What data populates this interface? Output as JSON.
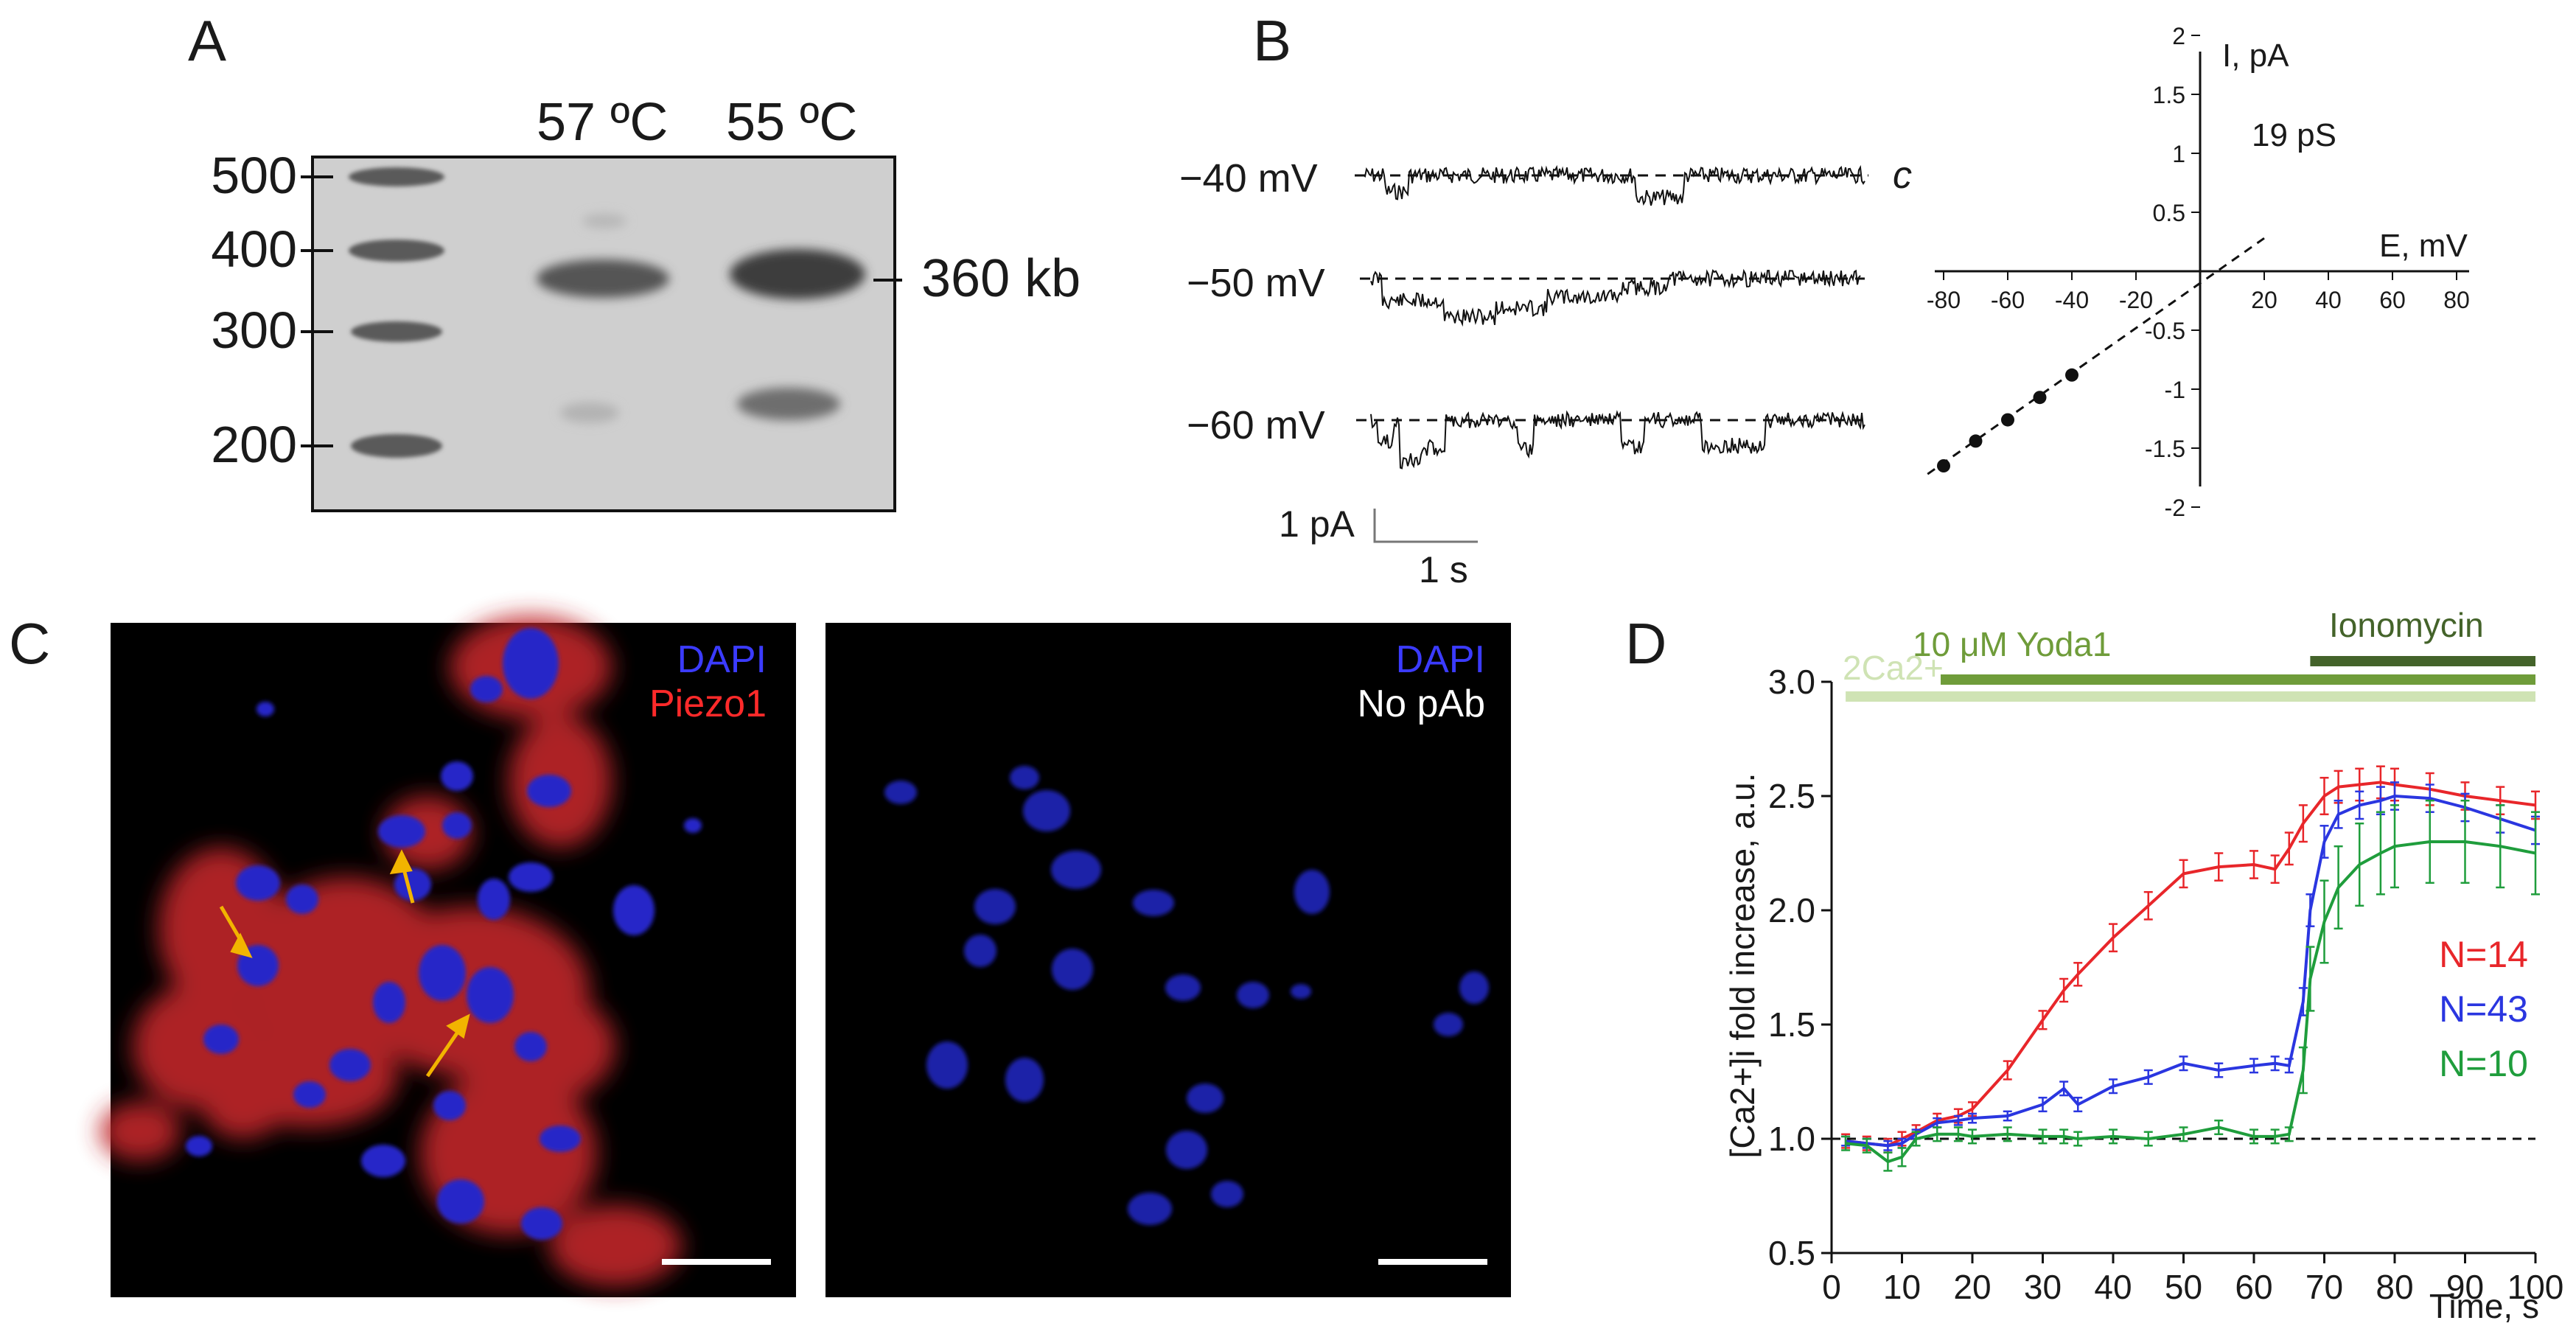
{
  "panel_letters": {
    "a": "A",
    "b": "B",
    "c": "C",
    "d": "D"
  },
  "colors": {
    "red": "#e8262a",
    "blue": "#2a36e0",
    "green": "#1f9d3c",
    "bar_light": "#cfe3b4",
    "bar_mid": "#6f9c3a",
    "bar_dark": "#44632a",
    "dapi": "#3b3bff",
    "piezo": "#ff2a2a",
    "arrow": "#f2b400"
  },
  "gel": {
    "lane_labels": [
      "57 ºC",
      "55 ºC"
    ],
    "ladder_labels": [
      "500",
      "400",
      "300",
      "200"
    ],
    "band_label": "360 kb"
  },
  "traces": {
    "voltages": [
      "−40 mV",
      "−50 mV",
      "−60 mV"
    ],
    "closed_label": "c",
    "scale_current": "1 pA",
    "scale_time": "1 s"
  },
  "iv_plot": {
    "x_axis_label": "E, mV",
    "y_axis_label": "I, pA",
    "conductance_label": "19 pS",
    "x_ticks": [
      "-80",
      "-60",
      "-40",
      "-20",
      "20",
      "40",
      "60",
      "80"
    ],
    "y_ticks": [
      "2",
      "1.5",
      "1",
      "0.5",
      "-0.5",
      "-1",
      "-1.5",
      "-2"
    ]
  },
  "micrographs": {
    "left_labels": [
      "DAPI",
      "Piezo1"
    ],
    "right_labels": [
      "DAPI",
      "No pAb"
    ]
  },
  "chart_data": [
    {
      "type": "scatter",
      "xlabel": "E, mV",
      "ylabel": "I, pA",
      "xlim": [
        -80,
        80
      ],
      "ylim": [
        -2,
        2
      ],
      "x": [
        -80,
        -70,
        -60,
        -50,
        -40
      ],
      "y": [
        -1.65,
        -1.44,
        -1.26,
        -1.07,
        -0.88
      ],
      "fit_line": {
        "x": [
          -85,
          20
        ],
        "y": [
          -1.72,
          0.28
        ]
      },
      "annotation": "19 pS"
    },
    {
      "type": "line",
      "xlabel": "Time, s",
      "ylabel": "[Ca2+]i fold increase, a.u.",
      "xlim": [
        0,
        100
      ],
      "ylim": [
        0.5,
        3.0
      ],
      "x_ticks": [
        0,
        10,
        20,
        30,
        40,
        50,
        60,
        70,
        80,
        90,
        100
      ],
      "y_ticks": [
        "0.5",
        "1.0",
        "1.5",
        "2.0",
        "2.5",
        "3.0"
      ],
      "baseline": 1.0,
      "treatments": [
        {
          "label": "2Ca2+",
          "start": 2,
          "end": 100,
          "level": "light"
        },
        {
          "label": "10 μM Yoda1",
          "start": 15.5,
          "end": 100,
          "level": "mid"
        },
        {
          "label": "Ionomycin",
          "start": 68,
          "end": 100,
          "level": "dark"
        }
      ],
      "series": [
        {
          "name": "N=14",
          "color": "red",
          "x": [
            2,
            5,
            8,
            10,
            12,
            15,
            18,
            20,
            25,
            30,
            33,
            35,
            40,
            45,
            50,
            55,
            60,
            63,
            65,
            67,
            70,
            72,
            75,
            78,
            80,
            85,
            90,
            95,
            100
          ],
          "y": [
            0.99,
            0.98,
            0.97,
            1.0,
            1.03,
            1.08,
            1.1,
            1.13,
            1.3,
            1.52,
            1.65,
            1.72,
            1.88,
            2.02,
            2.16,
            2.19,
            2.2,
            2.18,
            2.27,
            2.38,
            2.5,
            2.54,
            2.55,
            2.56,
            2.55,
            2.53,
            2.5,
            2.48,
            2.46
          ],
          "err": [
            0.03,
            0.03,
            0.03,
            0.03,
            0.03,
            0.03,
            0.03,
            0.03,
            0.04,
            0.04,
            0.05,
            0.05,
            0.06,
            0.06,
            0.06,
            0.06,
            0.06,
            0.06,
            0.07,
            0.08,
            0.08,
            0.07,
            0.07,
            0.07,
            0.07,
            0.07,
            0.06,
            0.06,
            0.06
          ]
        },
        {
          "name": "N=43",
          "color": "blue",
          "x": [
            2,
            5,
            8,
            10,
            12,
            15,
            18,
            20,
            25,
            30,
            33,
            35,
            40,
            45,
            50,
            55,
            60,
            63,
            65,
            67,
            68,
            70,
            72,
            75,
            78,
            80,
            85,
            90,
            95,
            100
          ],
          "y": [
            0.99,
            0.98,
            0.97,
            0.98,
            1.02,
            1.07,
            1.08,
            1.09,
            1.1,
            1.15,
            1.22,
            1.15,
            1.23,
            1.27,
            1.33,
            1.3,
            1.32,
            1.33,
            1.32,
            1.6,
            2.0,
            2.3,
            2.42,
            2.46,
            2.48,
            2.5,
            2.49,
            2.45,
            2.4,
            2.35
          ],
          "err": [
            0.02,
            0.02,
            0.02,
            0.02,
            0.02,
            0.02,
            0.02,
            0.02,
            0.02,
            0.03,
            0.03,
            0.03,
            0.03,
            0.03,
            0.03,
            0.03,
            0.03,
            0.03,
            0.03,
            0.06,
            0.07,
            0.07,
            0.06,
            0.06,
            0.06,
            0.06,
            0.06,
            0.06,
            0.06,
            0.06
          ]
        },
        {
          "name": "N=10",
          "color": "green",
          "x": [
            2,
            5,
            8,
            10,
            12,
            15,
            18,
            20,
            25,
            30,
            33,
            35,
            40,
            45,
            50,
            55,
            60,
            63,
            65,
            67,
            68,
            70,
            72,
            75,
            78,
            80,
            85,
            90,
            95,
            100
          ],
          "y": [
            0.98,
            0.97,
            0.9,
            0.92,
            1.0,
            1.02,
            1.02,
            1.01,
            1.02,
            1.01,
            1.01,
            1.0,
            1.01,
            1.0,
            1.02,
            1.05,
            1.01,
            1.01,
            1.02,
            1.3,
            1.7,
            1.95,
            2.1,
            2.2,
            2.25,
            2.28,
            2.3,
            2.3,
            2.28,
            2.25
          ],
          "err": [
            0.03,
            0.03,
            0.04,
            0.04,
            0.03,
            0.03,
            0.03,
            0.03,
            0.03,
            0.03,
            0.03,
            0.03,
            0.03,
            0.03,
            0.03,
            0.03,
            0.03,
            0.03,
            0.03,
            0.1,
            0.14,
            0.18,
            0.18,
            0.18,
            0.18,
            0.18,
            0.18,
            0.18,
            0.18,
            0.18
          ]
        }
      ]
    }
  ]
}
